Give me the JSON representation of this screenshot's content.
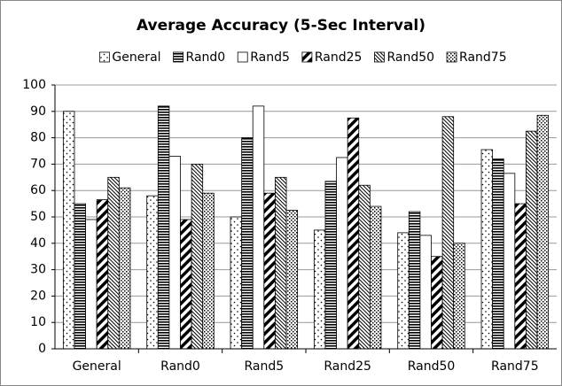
{
  "chart_data": {
    "type": "bar",
    "title": "Average Accuracy (5-Sec Interval)",
    "categories": [
      "General",
      "Rand0",
      "Rand5",
      "Rand25",
      "Rand50",
      "Rand75"
    ],
    "series": [
      {
        "name": "General",
        "color": "#000000",
        "values": [
          90,
          58,
          50,
          45,
          44,
          75.5
        ]
      },
      {
        "name": "Rand0",
        "color": "#000000",
        "values": [
          55,
          92,
          80,
          63.5,
          52,
          72
        ]
      },
      {
        "name": "Rand5",
        "color": "#000000",
        "values": [
          49,
          73,
          92,
          72.5,
          43,
          66.5
        ]
      },
      {
        "name": "Rand25",
        "color": "#000000",
        "values": [
          56.5,
          49,
          59,
          87.5,
          35,
          55
        ]
      },
      {
        "name": "Rand50",
        "color": "#000000",
        "values": [
          65,
          70,
          65,
          62,
          88,
          82.5
        ]
      },
      {
        "name": "Rand75",
        "color": "#000000",
        "values": [
          61,
          59,
          52.5,
          54,
          40,
          88.5
        ]
      }
    ],
    "ylim": [
      0,
      100
    ],
    "yticks": [
      0,
      10,
      20,
      30,
      40,
      50,
      60,
      70,
      80,
      90,
      100
    ],
    "grid": true,
    "legend": "top"
  }
}
